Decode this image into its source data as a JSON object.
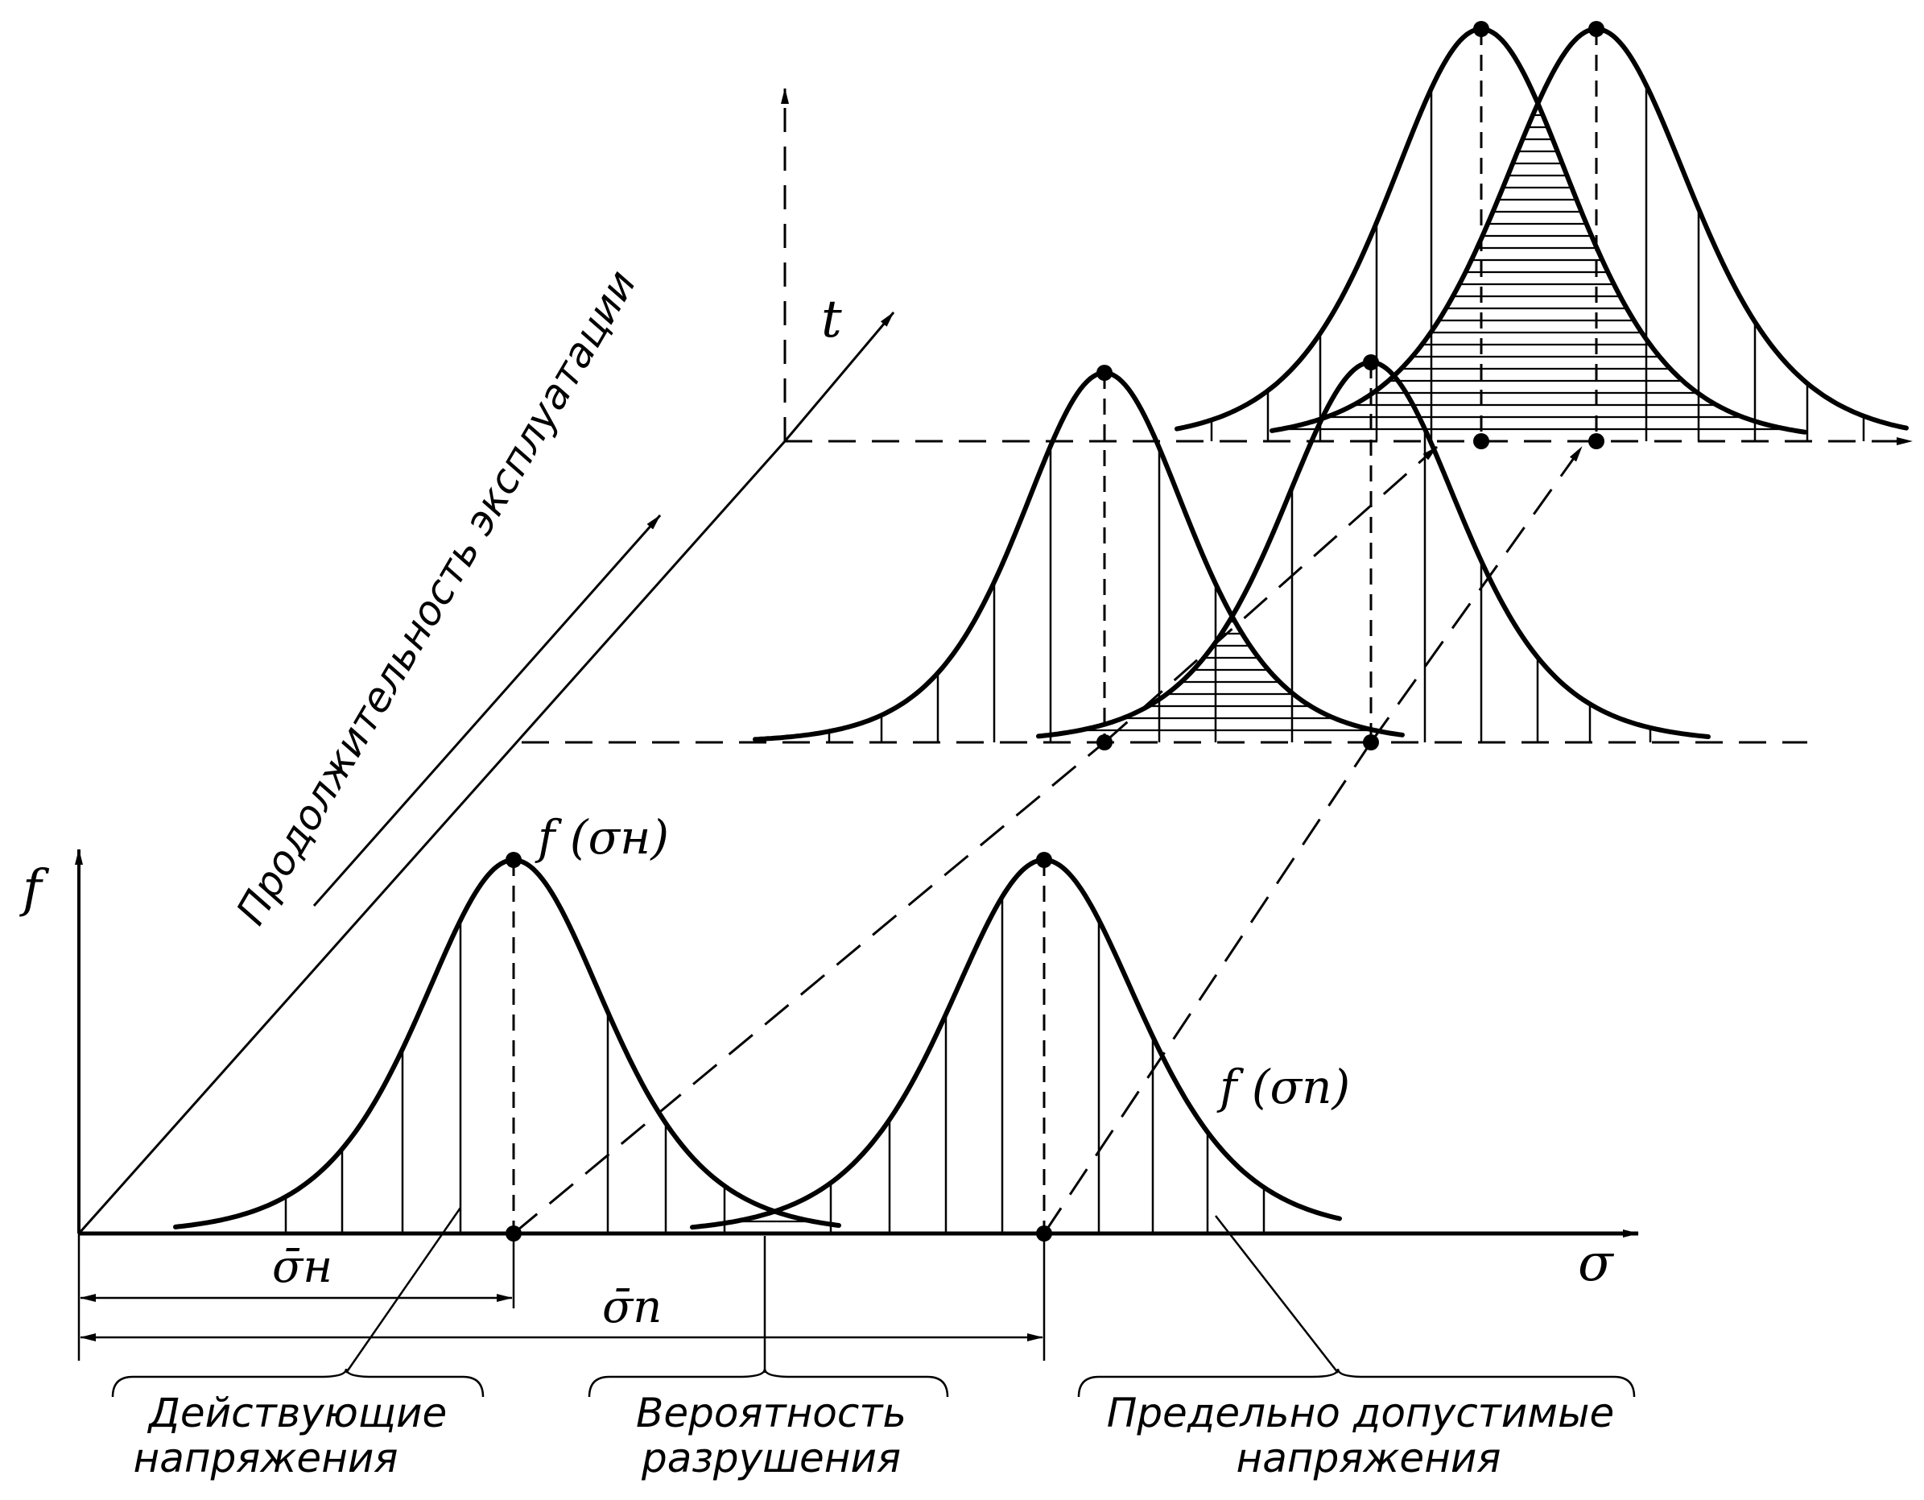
{
  "labels": {
    "axis_f": "f",
    "axis_sigma": "σ",
    "axis_t": "t",
    "f_sigma_n": "f (σн)",
    "f_sigma_p": "f (σп)",
    "mean_sigma_n": "σ̄н",
    "mean_sigma_p": "σ̄п",
    "duration": "Продолжительность эксплуатации"
  },
  "captions": {
    "acting_line1": "Действующие",
    "acting_line2": "напряжения",
    "failure_line1": "Вероятность",
    "failure_line2": "разрушения",
    "limit_line1": "Предельно  допустимые",
    "limit_line2": "напряжения"
  }
}
